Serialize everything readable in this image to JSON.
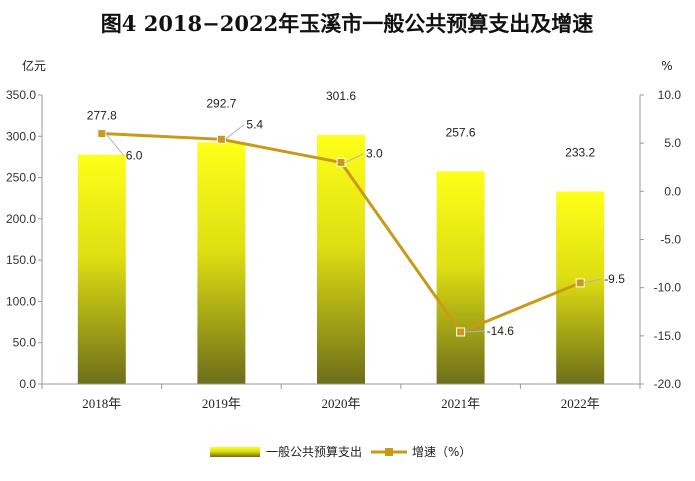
{
  "chart_data": {
    "type": "bar",
    "title": "图4      2018−2022年玉溪市一般公共预算支出及增速",
    "categories": [
      "2018年",
      "2019年",
      "2020年",
      "2021年",
      "2022年"
    ],
    "series": [
      {
        "name": "一般公共预算支出",
        "type": "bar",
        "axis": "left",
        "values": [
          277.8,
          292.7,
          301.6,
          257.6,
          233.2
        ],
        "color_top": "#ffff1a",
        "color_bottom": "#6e6e1a"
      },
      {
        "name": "增速（%）",
        "type": "line",
        "axis": "right",
        "values": [
          6.0,
          5.4,
          3.0,
          -14.6,
          -9.5
        ],
        "color": "#c89a17"
      }
    ],
    "y_left": {
      "label": "亿元",
      "lim": [
        0,
        350
      ],
      "ticks": [
        "0.0",
        "50.0",
        "100.0",
        "150.0",
        "200.0",
        "250.0",
        "300.0",
        "350.0"
      ]
    },
    "y_right": {
      "label": "%",
      "lim": [
        -20,
        10
      ],
      "ticks": [
        "-20.0",
        "-15.0",
        "-10.0",
        "-5.0",
        "0.0",
        "5.0",
        "10.0"
      ]
    },
    "bar_labels": [
      "277.8",
      "292.7",
      "301.6",
      "257.6",
      "233.2"
    ],
    "line_labels": [
      "6.0",
      "5.4",
      "3.0",
      "-14.6",
      "-9.5"
    ],
    "grid": false,
    "legend_position": "bottom"
  }
}
